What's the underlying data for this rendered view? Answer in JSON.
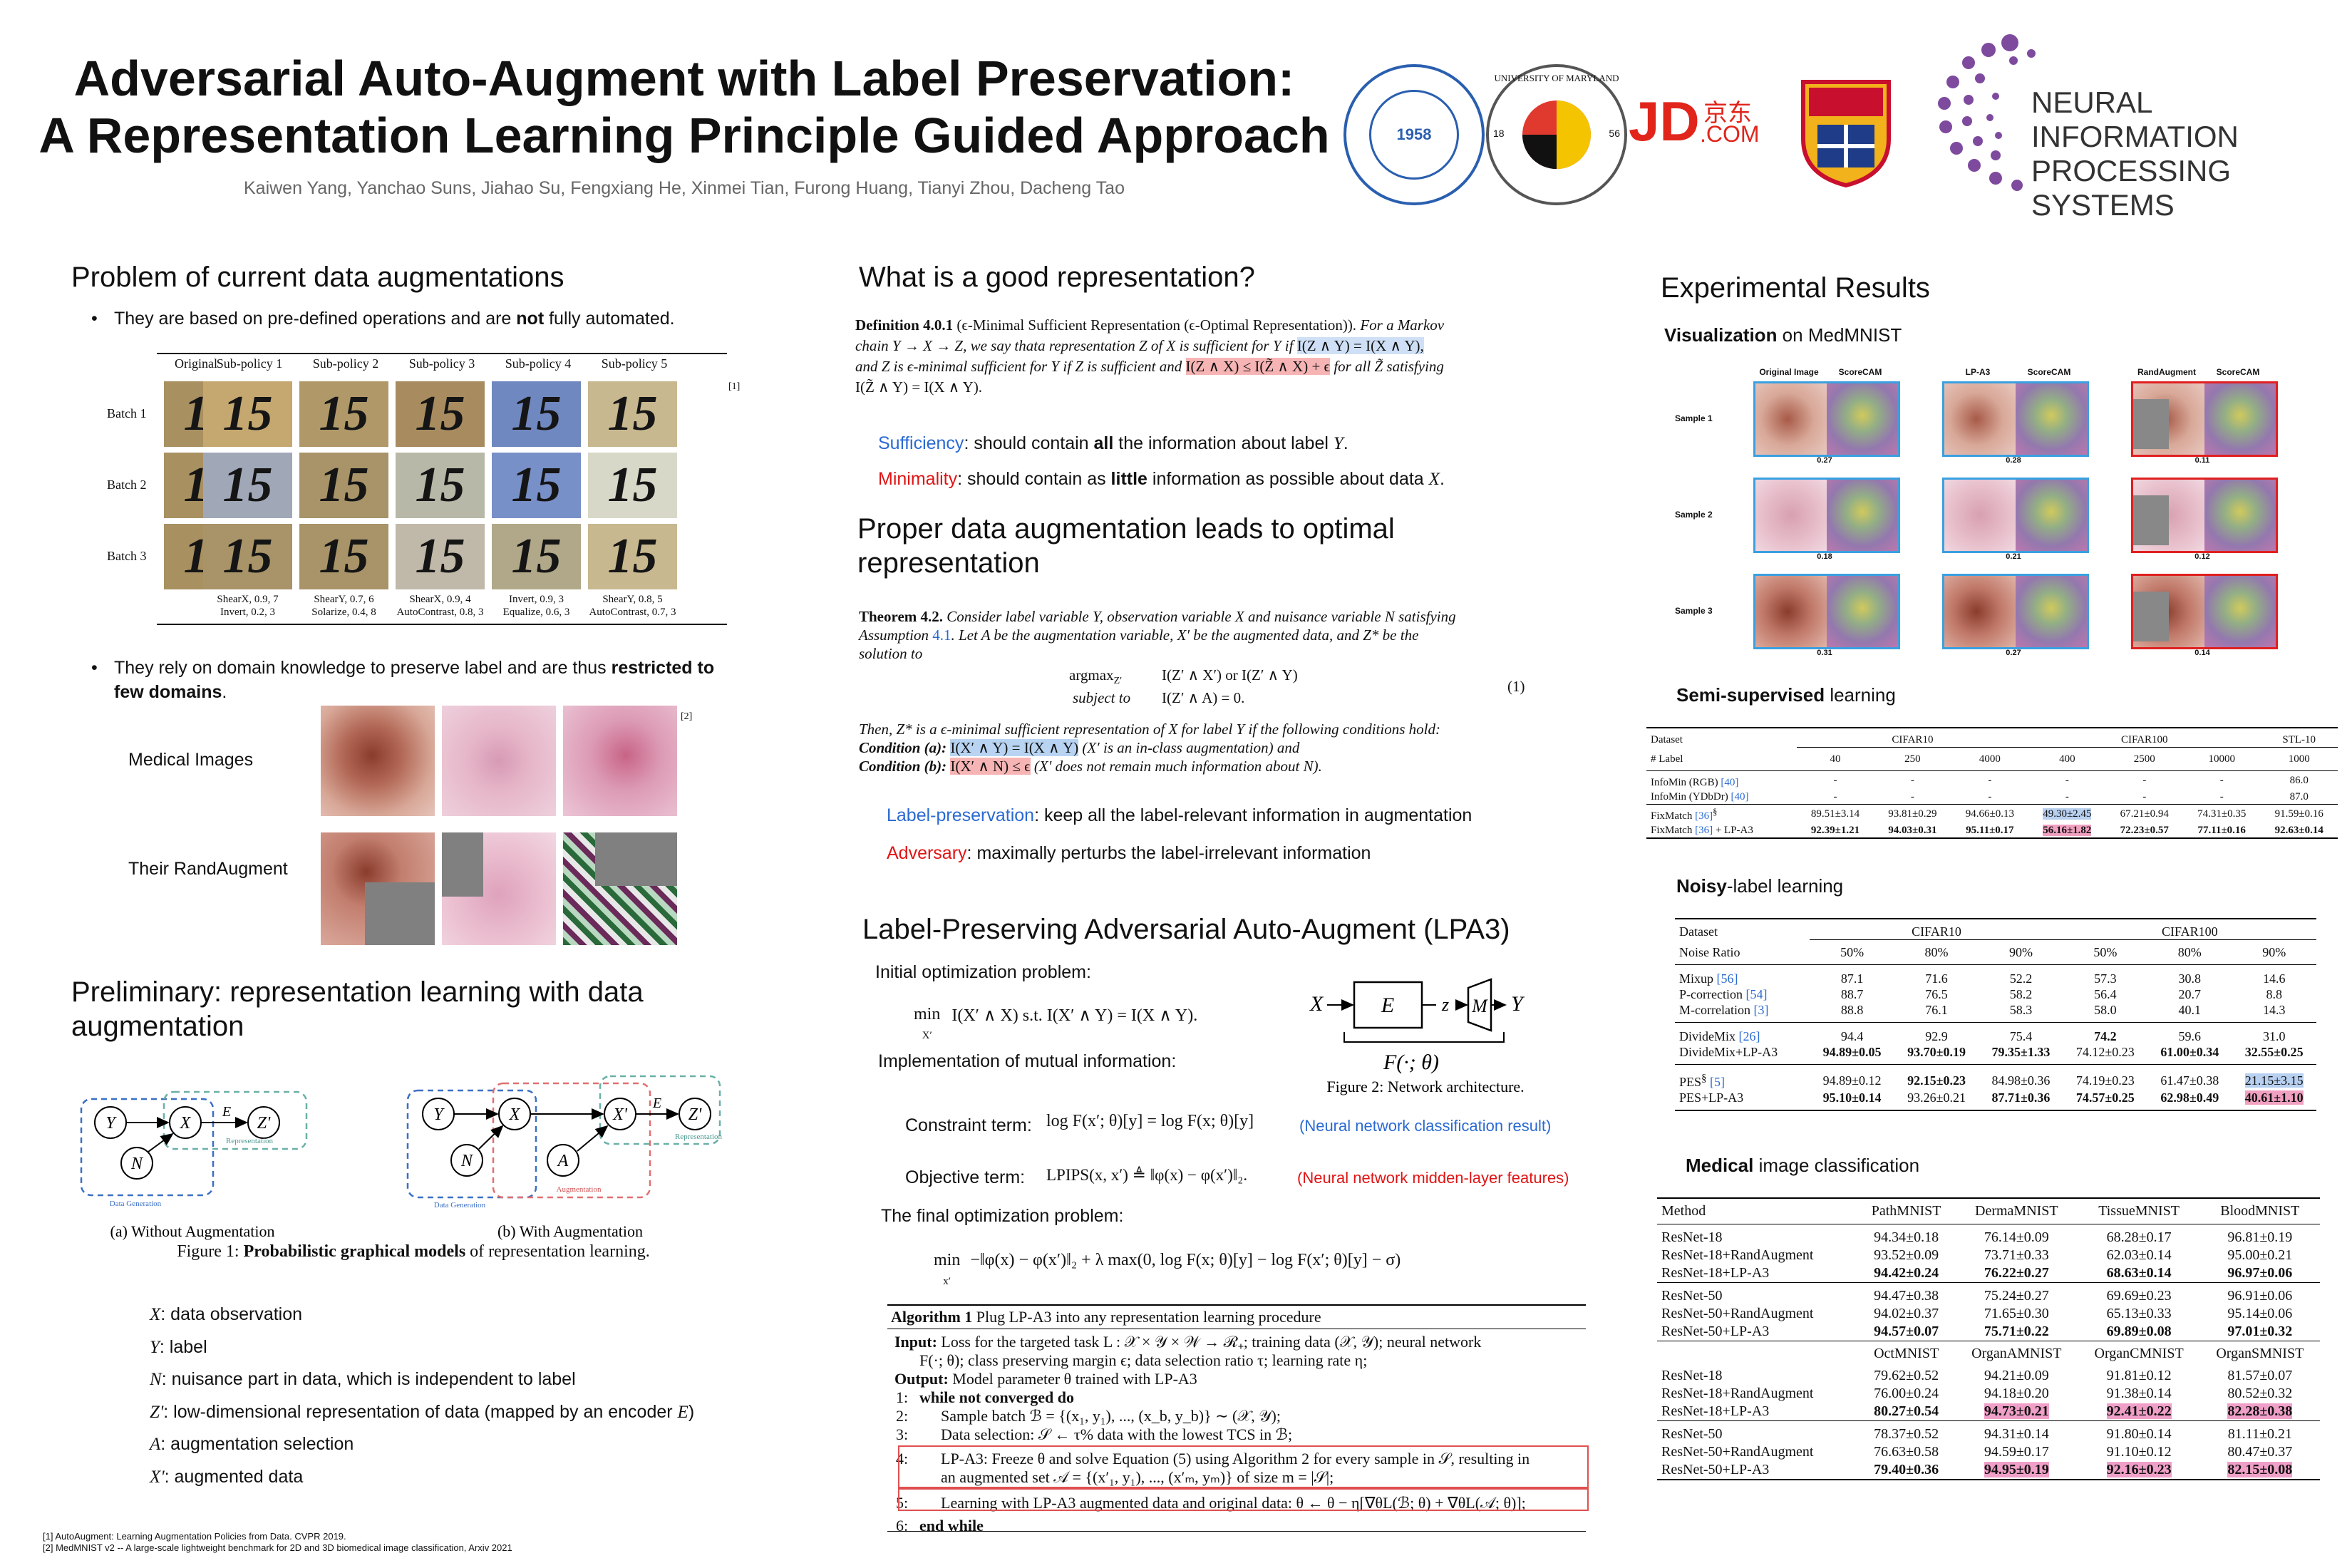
{
  "header": {
    "title_line1": "Adversarial Auto-Augment with Label Preservation:",
    "title_line2": "A Representation Learning Principle Guided Approach",
    "authors": "Kaiwen Yang, Yanchao Suns, Jiahao Su, Fengxiang He, Xinmei Tian, Furong Huang, Tianyi Zhou, Dacheng Tao",
    "logos": {
      "ustc_year": "1958",
      "umd": "UNIVERSITY OF MARYLAND",
      "umd_years": [
        "18",
        "56"
      ],
      "jd_left": "JD",
      "jd_cn": "京东",
      "jd_com": ".COM",
      "neurips_line1": "NEURAL INFORMATION",
      "neurips_line2": "PROCESSING SYSTEMS"
    }
  },
  "col1": {
    "problem_title": "Problem of current data augmentations",
    "bullet1_a": "They are based on pre-defined operations and are ",
    "bullet1_b": "not",
    "bullet1_c": " fully automated.",
    "aug_cols": [
      "Original",
      "Sub-policy 1",
      "Sub-policy 2",
      "Sub-policy 3",
      "Sub-policy 4",
      "Sub-policy 5"
    ],
    "aug_rows": [
      "Batch 1",
      "Batch 2",
      "Batch 3"
    ],
    "glyph": "15",
    "ref1": "[1]",
    "policy_line1": [
      "ShearX, 0.9, 7",
      "ShearY, 0.7, 6",
      "ShearX, 0.9, 4",
      "Invert, 0.9, 3",
      "ShearY, 0.8, 5"
    ],
    "policy_line2": [
      "Invert, 0.2, 3",
      "Solarize, 0.4, 8",
      "AutoContrast, 0.8, 3",
      "Equalize, 0.6, 3",
      "AutoContrast, 0.7, 3"
    ],
    "bullet2_a": "They rely on domain knowledge to preserve label and are thus ",
    "bullet2_b": "restricted to",
    "bullet2_c": "few domains",
    "bullet2_d": ".",
    "ref2": "[2]",
    "medical_label": "Medical Images",
    "randaug_label": "Their RandAugment",
    "prelim_title_1": "Preliminary: representation learning with data",
    "prelim_title_2": "augmentation",
    "fig1": {
      "nodes_a": [
        "Y",
        "X",
        "Z'",
        "N"
      ],
      "edge_label": "E",
      "box_data": "Data Generation",
      "box_rep": "Representation",
      "nodes_b": [
        "Y",
        "X",
        "X'",
        "Z'",
        "N",
        "A"
      ],
      "box_aug": "Augmentation",
      "cap_a": "(a) Without Augmentation",
      "cap_b": "(b) With Augmentation",
      "caption_a": "Figure 1: ",
      "caption_b": "Probabilistic graphical models",
      "caption_c": " of representation learning."
    },
    "defs": [
      {
        "sym": "X",
        "text": ": data observation"
      },
      {
        "sym": "Y",
        "text": ": label"
      },
      {
        "sym": "N",
        "text": ": nuisance part in data, which is independent to label"
      },
      {
        "sym": "Z'",
        "text": ": low-dimensional representation of data (mapped by an encoder ",
        "tail_sym": "E",
        "tail": ")"
      },
      {
        "sym": "A",
        "text": ": augmentation selection"
      },
      {
        "sym": "X'",
        "text": ": augmented data"
      }
    ],
    "footnote1": "[1] AutoAugment: Learning Augmentation Policies from Data. CVPR 2019.",
    "footnote2": "[2] MedMNIST v2 -- A large-scale lightweight benchmark for 2D and 3D biomedical image classification, Arxiv 2021"
  },
  "col2": {
    "good_rep_title": "What is a good representation?",
    "def_head": "Definition 4.0.1",
    "def_head2": " (ϵ-Minimal Sufficient Representation (ϵ-Optimal Representation)).",
    "def_l1": "For a Markov",
    "def_l2a": "chain Y → X → Z, we say thata representation Z of X is sufficient for Y if ",
    "def_l2b": "I(Z ∧ Y) = I(X ∧ Y),",
    "def_l3a": "and Z is ϵ-minimal sufficient for Y if Z is sufficient and ",
    "def_l3b": "I(Z ∧ X) ≤ I(Z̃ ∧ X) + ϵ",
    "def_l3c": " for all Z̃ satisfying",
    "def_l4": "I(Z̃ ∧ Y) = I(X ∧ Y).",
    "suff_a": "Sufficiency",
    "suff_b": ": should contain ",
    "suff_c": "all",
    "suff_d": " the information about label ",
    "suff_e": "Y",
    "suff_f": ".",
    "min_a": "Minimality",
    "min_b": ": should contain as ",
    "min_c": "little",
    "min_d": " information as possible about data ",
    "min_e": "X",
    "min_f": ".",
    "proper_title_1": "Proper data augmentation leads to optimal",
    "proper_title_2": "representation",
    "thm_head": "Theorem 4.2.",
    "thm_l1": " Consider label variable Y, observation variable X and nuisance variable N satisfying",
    "thm_l2a": "Assumption ",
    "thm_l2b": "4.1",
    "thm_l2c": ". Let A be the augmentation variable, X′ be the augmented data, and Z* be the",
    "thm_l3": "solution to",
    "thm_eq1a": "argmax",
    "thm_eq1b": "Z′",
    "thm_eq1c": "I(Z′ ∧ X′) or I(Z′ ∧ Y)",
    "thm_eq2a": "subject to",
    "thm_eq2b": "I(Z′ ∧ A) = 0.",
    "thm_eqno": "(1)",
    "thm_l4": "Then, Z* is a ϵ-minimal sufficient representation of X for label Y if the following conditions hold:",
    "cond_a_head": "Condition (a): ",
    "cond_a_hl": "I(X′ ∧ Y) = I(X ∧ Y)",
    "cond_a_tail": " (X′ is an in-class augmentation) and",
    "cond_b_head": "Condition (b): ",
    "cond_b_hl": "I(X′ ∧ N) ≤ ϵ",
    "cond_b_tail": " (X′ does not remain much information about N).",
    "lp_a": "Label-preservation",
    "lp_b": ": keep all the label-relevant information in augmentation",
    "adv_a": "Adversary",
    "adv_b": ": maximally perturbs the label-irrelevant information",
    "lpa3_title": "Label-Preserving Adversarial Auto-Augment (LPA3)",
    "init_opt": "Initial optimization problem:",
    "init_eq_a": "min",
    "init_eq_b": "X′",
    "init_eq_c": "I(X′ ∧ X)    s.t. I(X′ ∧ Y) = I(X ∧ Y).",
    "impl": "Implementation of mutual information:",
    "fig2": {
      "x": "X",
      "e": "E",
      "z": "z",
      "m": "M",
      "y": "Y",
      "f": "F(·; θ)",
      "caption": "Figure 2: Network architecture."
    },
    "constraint_label": "Constraint term:",
    "constraint_eq": "log F(x′; θ)[y] = log F(x; θ)[y]",
    "constraint_note": "(Neural network classification result)",
    "objective_label": "Objective term:",
    "objective_eq": "LPIPS(x, x′) ≜ ‖φ(x) − φ(x′)‖₂.",
    "objective_note": "(Neural network midden-layer features)",
    "final_label": "The final optimization problem:",
    "final_eq_a": "min",
    "final_eq_b": "x′",
    "final_eq_c": "−‖φ(x) − φ(x′)‖₂ + λ max(0, log F(x; θ)[y] − log F(x′; θ)[y] − σ)",
    "algo_title_a": "Algorithm 1",
    "algo_title_b": " Plug LP-A3 into any representation learning procedure",
    "algo_input_a": "Input:",
    "algo_input_b": " Loss for the targeted task L : 𝒳 × 𝒴 × 𝒲 → ℛ₊; training data (𝒳, 𝒴); neural network",
    "algo_input_c": "F(·; θ); class preserving margin ϵ; data selection ratio τ; learning rate η;",
    "algo_output_a": "Output:",
    "algo_output_b": " Model parameter θ trained with LP-A3",
    "algo_steps": [
      {
        "n": "1:",
        "t": "while not converged do"
      },
      {
        "n": "2:",
        "t": "Sample batch ℬ = {(x₁, y₁), ..., (x_b, y_b)} ∼ (𝒳, 𝒴);"
      },
      {
        "n": "3:",
        "t": "Data selection: 𝒮 ← τ% data with the lowest TCS in ℬ;"
      },
      {
        "n": "4:",
        "t": "LP-A3: Freeze θ and solve Equation (5) using Algorithm 2 for every sample in 𝒮, resulting in"
      },
      {
        "n": "",
        "t": "an augmented set 𝒜 = {(x′₁, y₁), ..., (x′ₘ, yₘ)} of size m = |𝒮|;"
      },
      {
        "n": "5:",
        "t": "Learning with LP-A3 augmented data and original data: θ ← θ − η[∇θL(ℬ; θ) + ∇θL(𝒜; θ)];"
      },
      {
        "n": "6:",
        "t": "end while"
      }
    ]
  },
  "col3": {
    "exp_title": "Experimental Results",
    "vis_title_a": "Visualization",
    "vis_title_b": " on MedMNIST",
    "vis_heads": [
      "Original Image",
      "ScoreCAM",
      "LP-A3",
      "ScoreCAM",
      "RandAugment",
      "ScoreCAM"
    ],
    "vis_rows": [
      "Sample 1",
      "Sample 2",
      "Sample 3"
    ],
    "vis_scores": [
      [
        "0.27",
        "0.28",
        "0.11"
      ],
      [
        "0.18",
        "0.21",
        "0.12"
      ],
      [
        "0.31",
        "0.27",
        "0.14"
      ]
    ],
    "semi_title_a": "Semi-supervised",
    "semi_title_b": " learning",
    "semi": {
      "h1": [
        "Dataset",
        "CIFAR10",
        "CIFAR100",
        "STL-10"
      ],
      "h2": [
        "# Label",
        "40",
        "250",
        "4000",
        "400",
        "2500",
        "10000",
        "1000"
      ],
      "rows": [
        {
          "name": "InfoMin (RGB) ",
          "ref": "[40]",
          "sup": "",
          "cells": [
            "-",
            "-",
            "-",
            "-",
            "-",
            "-",
            "86.0"
          ]
        },
        {
          "name": "InfoMin (YDbDr) ",
          "ref": "[40]",
          "sup": "",
          "cells": [
            "-",
            "-",
            "-",
            "-",
            "-",
            "-",
            "87.0"
          ]
        },
        {
          "name": "FixMatch ",
          "ref": "[36]",
          "sup": "§",
          "cells": [
            "89.51±3.14",
            "93.81±0.29",
            "94.66±0.13",
            "49.30±2.45",
            "67.21±0.94",
            "74.31±0.35",
            "91.59±0.16"
          ]
        },
        {
          "name": "FixMatch ",
          "ref": "[36]",
          "sup": "",
          "tail": " + LP-A3",
          "cells": [
            "92.39±1.21",
            "94.03±0.31",
            "95.11±0.17",
            "56.16±1.82",
            "72.23±0.57",
            "77.11±0.16",
            "92.63±0.14"
          ]
        }
      ]
    },
    "noisy_title_a": "Noisy",
    "noisy_title_b": "-label learning",
    "noisy": {
      "h1": [
        "Dataset",
        "CIFAR10",
        "CIFAR100"
      ],
      "h2": [
        "Noise Ratio",
        "50%",
        "80%",
        "90%",
        "50%",
        "80%",
        "90%"
      ],
      "groups": [
        [
          {
            "name": "Mixup ",
            "ref": "[56]",
            "cells": [
              "87.1",
              "71.6",
              "52.2",
              "57.3",
              "30.8",
              "14.6"
            ]
          },
          {
            "name": "P-correction ",
            "ref": "[54]",
            "cells": [
              "88.7",
              "76.5",
              "58.2",
              "56.4",
              "20.7",
              "8.8"
            ]
          },
          {
            "name": "M-correlation ",
            "ref": "[3]",
            "cells": [
              "88.8",
              "76.1",
              "58.3",
              "58.0",
              "40.1",
              "14.3"
            ]
          }
        ],
        [
          {
            "name": "DivideMix ",
            "ref": "[26]",
            "cells": [
              "94.4",
              "92.9",
              "75.4",
              "74.2",
              "59.6",
              "31.0"
            ]
          },
          {
            "name": "DivideMix+LP-A3",
            "ref": "",
            "cells": [
              "94.89±0.05",
              "93.70±0.19",
              "79.35±1.33",
              "74.12±0.23",
              "61.00±0.34",
              "32.55±0.25"
            ]
          }
        ],
        [
          {
            "name": "PES",
            "sup": "§",
            "ref": " [5]",
            "cells": [
              "94.89±0.12",
              "92.15±0.23",
              "84.98±0.36",
              "74.19±0.23",
              "61.47±0.38",
              "21.15±3.15"
            ]
          },
          {
            "name": "PES+LP-A3",
            "ref": "",
            "cells": [
              "95.10±0.14",
              "93.26±0.21",
              "87.71±0.36",
              "74.57±0.25",
              "62.98±0.49",
              "40.61±1.10"
            ]
          }
        ]
      ]
    },
    "med_title_a": "Medical",
    "med_title_b": " image classification",
    "med": {
      "h1": [
        "Method",
        "PathMNIST",
        "DermaMNIST",
        "TissueMNIST",
        "BloodMNIST"
      ],
      "g1": [
        {
          "name": "ResNet-18",
          "cells": [
            "94.34±0.18",
            "76.14±0.09",
            "68.28±0.17",
            "96.81±0.19"
          ]
        },
        {
          "name": "ResNet-18+RandAugment",
          "cells": [
            "93.52±0.09",
            "73.71±0.33",
            "62.03±0.14",
            "95.00±0.21"
          ]
        },
        {
          "name": "ResNet-18+LP-A3",
          "cells": [
            "94.42±0.24",
            "76.22±0.27",
            "68.63±0.14",
            "96.97±0.06"
          ]
        }
      ],
      "g2": [
        {
          "name": "ResNet-50",
          "cells": [
            "94.47±0.38",
            "75.24±0.27",
            "69.69±0.23",
            "96.91±0.06"
          ]
        },
        {
          "name": "ResNet-50+RandAugment",
          "cells": [
            "94.02±0.37",
            "71.65±0.30",
            "65.13±0.33",
            "95.14±0.06"
          ]
        },
        {
          "name": "ResNet-50+LP-A3",
          "cells": [
            "94.57±0.07",
            "75.71±0.22",
            "69.89±0.08",
            "97.01±0.32"
          ]
        }
      ],
      "h2": [
        "",
        "OctMNIST",
        "OrganAMNIST",
        "OrganCMNIST",
        "OrganSMNIST"
      ],
      "g3": [
        {
          "name": "ResNet-18",
          "cells": [
            "79.62±0.52",
            "94.21±0.09",
            "91.81±0.12",
            "81.57±0.07"
          ]
        },
        {
          "name": "ResNet-18+RandAugment",
          "cells": [
            "76.00±0.24",
            "94.18±0.20",
            "91.38±0.14",
            "80.52±0.32"
          ]
        },
        {
          "name": "ResNet-18+LP-A3",
          "cells": [
            "80.27±0.54",
            "94.73±0.21",
            "92.41±0.22",
            "82.28±0.38"
          ]
        }
      ],
      "g4": [
        {
          "name": "ResNet-50",
          "cells": [
            "78.37±0.52",
            "94.31±0.14",
            "91.80±0.14",
            "81.11±0.21"
          ]
        },
        {
          "name": "ResNet-50+RandAugment",
          "cells": [
            "76.63±0.58",
            "94.59±0.17",
            "91.10±0.12",
            "80.47±0.37"
          ]
        },
        {
          "name": "ResNet-50+LP-A3",
          "cells": [
            "79.40±0.36",
            "94.95±0.19",
            "92.16±0.23",
            "82.15±0.08"
          ]
        }
      ]
    }
  }
}
